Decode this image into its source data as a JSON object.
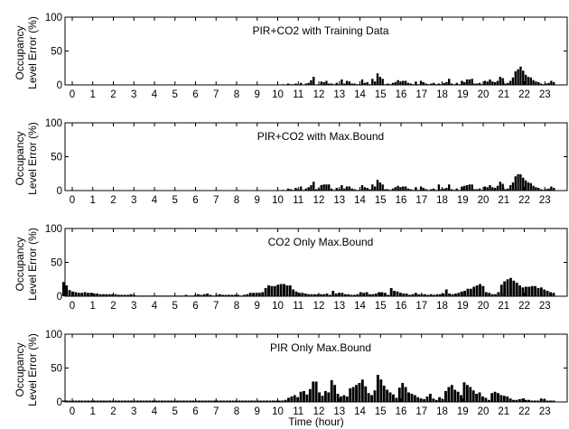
{
  "chart_data": [
    {
      "type": "bar",
      "title": "PIR+CO2 with Training Data",
      "ylabel_line1": "Occupancy",
      "ylabel_line2": "Level Error (%)",
      "xlabel": "",
      "ylim": [
        0,
        100
      ],
      "yticks": [
        "0",
        "50",
        "100"
      ],
      "x_tick_labels": [
        "0",
        "1",
        "2",
        "3",
        "4",
        "5",
        "6",
        "7",
        "8",
        "9",
        "10",
        "11",
        "12",
        "13",
        "14",
        "15",
        "16",
        "17",
        "18",
        "19",
        "20",
        "21",
        "22",
        "23"
      ],
      "values": [
        0,
        0,
        0,
        0,
        0,
        0,
        0,
        0,
        0,
        0,
        0,
        0,
        0,
        0,
        0,
        0,
        0,
        0,
        0,
        0,
        0,
        0,
        0,
        0,
        0,
        0,
        0,
        0,
        0,
        0,
        0,
        0,
        0,
        0,
        0,
        0,
        0,
        0,
        0,
        0,
        0,
        0,
        0,
        0,
        0,
        0,
        0,
        0,
        0,
        0,
        0,
        0,
        0,
        0,
        0,
        0,
        0,
        0,
        0,
        0,
        0,
        0,
        0,
        0,
        0,
        0,
        0,
        0,
        0,
        0,
        0,
        0,
        0,
        0,
        0,
        0,
        0,
        0,
        0,
        0,
        0,
        0,
        0,
        0,
        0,
        0,
        1,
        0,
        2,
        1,
        1,
        2,
        1,
        3,
        0,
        2,
        3,
        7,
        12,
        0,
        1,
        5,
        4,
        6,
        2,
        2,
        1,
        3,
        1,
        8,
        2,
        6,
        5,
        2,
        2,
        1,
        1,
        8,
        3,
        4,
        1,
        9,
        5,
        17,
        12,
        9,
        1,
        2,
        1,
        3,
        4,
        7,
        5,
        6,
        6,
        3,
        2,
        1,
        5,
        1,
        6,
        4,
        2,
        1,
        2,
        3,
        1,
        2,
        1,
        3,
        4,
        9,
        2,
        1,
        3,
        1,
        6,
        4,
        8,
        8,
        9,
        2,
        2,
        3,
        1,
        6,
        5,
        8,
        5,
        4,
        6,
        12,
        10,
        2,
        3,
        6,
        11,
        20,
        23,
        27,
        21,
        15,
        12,
        11,
        7,
        5,
        4,
        2,
        1,
        2,
        3,
        6,
        4
      ]
    },
    {
      "type": "bar",
      "title": "PIR+CO2 with Max.Bound",
      "ylabel_line1": "Occupancy",
      "ylabel_line2": "Level Error (%)",
      "xlabel": "",
      "ylim": [
        0,
        100
      ],
      "yticks": [
        "0",
        "50",
        "100"
      ],
      "x_tick_labels": [
        "0",
        "1",
        "2",
        "3",
        "4",
        "5",
        "6",
        "7",
        "8",
        "9",
        "10",
        "11",
        "12",
        "13",
        "14",
        "15",
        "16",
        "17",
        "18",
        "19",
        "20",
        "21",
        "22",
        "23"
      ],
      "values": [
        0,
        0,
        0,
        0,
        0,
        0,
        0,
        0,
        0,
        0,
        0,
        0,
        0,
        0,
        0,
        0,
        0,
        0,
        0,
        0,
        0,
        0,
        0,
        0,
        0,
        0,
        0,
        0,
        0,
        0,
        0,
        0,
        0,
        0,
        0,
        0,
        0,
        0,
        0,
        0,
        0,
        0,
        0,
        0,
        0,
        0,
        0,
        0,
        0,
        0,
        0,
        0,
        0,
        0,
        0,
        0,
        0,
        0,
        0,
        0,
        0,
        0,
        0,
        0,
        0,
        0,
        0,
        0,
        0,
        0,
        0,
        0,
        0,
        0,
        0,
        0,
        0,
        0,
        0,
        0,
        0,
        0,
        0,
        0,
        0,
        0,
        1,
        0,
        3,
        2,
        1,
        4,
        2,
        6,
        1,
        3,
        5,
        8,
        13,
        2,
        3,
        8,
        9,
        9,
        9,
        3,
        1,
        4,
        2,
        8,
        3,
        6,
        6,
        3,
        2,
        1,
        1,
        8,
        5,
        4,
        2,
        9,
        6,
        16,
        12,
        9,
        2,
        2,
        1,
        3,
        5,
        7,
        5,
        6,
        6,
        3,
        2,
        1,
        5,
        1,
        6,
        4,
        2,
        1,
        2,
        3,
        1,
        9,
        2,
        3,
        4,
        9,
        2,
        1,
        3,
        1,
        6,
        7,
        8,
        9,
        9,
        2,
        2,
        3,
        1,
        6,
        5,
        8,
        5,
        4,
        7,
        13,
        10,
        2,
        3,
        8,
        12,
        21,
        24,
        24,
        19,
        15,
        12,
        11,
        7,
        5,
        4,
        2,
        1,
        2,
        3,
        6,
        4
      ]
    },
    {
      "type": "bar",
      "title": "CO2 Only Max.Bound",
      "ylabel_line1": "Occupancy",
      "ylabel_line2": "Level Error (%)",
      "xlabel": "",
      "ylim": [
        0,
        100
      ],
      "yticks": [
        "0",
        "50",
        "100"
      ],
      "x_tick_labels": [
        "0",
        "1",
        "2",
        "3",
        "4",
        "5",
        "6",
        "7",
        "8",
        "9",
        "10",
        "11",
        "12",
        "13",
        "14",
        "15",
        "16",
        "17",
        "18",
        "19",
        "20",
        "21",
        "22",
        "23"
      ],
      "values": [
        21,
        16,
        9,
        7,
        6,
        5,
        5,
        6,
        5,
        5,
        4,
        4,
        3,
        3,
        3,
        3,
        3,
        3,
        2,
        2,
        2,
        2,
        3,
        2,
        1,
        1,
        1,
        1,
        1,
        1,
        1,
        1,
        1,
        1,
        1,
        1,
        1,
        1,
        1,
        1,
        2,
        1,
        1,
        2,
        3,
        2,
        3,
        4,
        2,
        1,
        2,
        3,
        2,
        2,
        2,
        2,
        2,
        2,
        1,
        2,
        3,
        5,
        5,
        5,
        5,
        6,
        12,
        16,
        15,
        15,
        17,
        18,
        18,
        16,
        16,
        10,
        7,
        5,
        5,
        4,
        3,
        3,
        3,
        3,
        3,
        3,
        4,
        2,
        8,
        4,
        5,
        5,
        3,
        3,
        2,
        2,
        3,
        6,
        5,
        6,
        3,
        3,
        4,
        6,
        6,
        5,
        2,
        12,
        8,
        7,
        5,
        4,
        4,
        2,
        3,
        5,
        3,
        3,
        3,
        2,
        3,
        2,
        3,
        3,
        4,
        10,
        4,
        3,
        4,
        5,
        7,
        8,
        11,
        11,
        14,
        16,
        18,
        15,
        6,
        5,
        3,
        3,
        6,
        17,
        22,
        25,
        27,
        23,
        20,
        16,
        13,
        14,
        14,
        15,
        15,
        12,
        13,
        10,
        8,
        6,
        5
      ]
    },
    {
      "type": "bar",
      "title": "PIR Only Max.Bound",
      "ylabel_line1": "Occupancy",
      "ylabel_line2": "Level Error (%)",
      "xlabel": "Time (hour)",
      "ylim": [
        0,
        100
      ],
      "yticks": [
        "0",
        "50",
        "100"
      ],
      "x_tick_labels": [
        "0",
        "1",
        "2",
        "3",
        "4",
        "5",
        "6",
        "7",
        "8",
        "9",
        "10",
        "11",
        "12",
        "13",
        "14",
        "15",
        "16",
        "17",
        "18",
        "19",
        "20",
        "21",
        "22",
        "23"
      ],
      "values": [
        2,
        2,
        2,
        2,
        2,
        2,
        2,
        2,
        2,
        2,
        2,
        2,
        2,
        2,
        2,
        2,
        2,
        2,
        2,
        2,
        2,
        2,
        2,
        2,
        2,
        2,
        2,
        2,
        2,
        2,
        2,
        2,
        2,
        2,
        2,
        2,
        2,
        2,
        2,
        2,
        2,
        2,
        2,
        2,
        2,
        2,
        2,
        2,
        2,
        2,
        2,
        2,
        2,
        2,
        2,
        2,
        2,
        2,
        2,
        2,
        2,
        2,
        2,
        2,
        2,
        2,
        2,
        2,
        2,
        2,
        2,
        2,
        3,
        6,
        8,
        10,
        7,
        15,
        16,
        11,
        19,
        30,
        30,
        14,
        9,
        16,
        14,
        32,
        25,
        12,
        8,
        10,
        8,
        20,
        22,
        25,
        28,
        33,
        23,
        13,
        10,
        17,
        40,
        33,
        24,
        18,
        14,
        11,
        6,
        21,
        28,
        22,
        14,
        12,
        10,
        7,
        5,
        4,
        8,
        12,
        5,
        3,
        7,
        4,
        16,
        22,
        25,
        18,
        15,
        10,
        29,
        25,
        22,
        17,
        12,
        14,
        8,
        6,
        3,
        13,
        15,
        13,
        10,
        9,
        8,
        5,
        3,
        3,
        4,
        5,
        3,
        3,
        2,
        2,
        2,
        5,
        4,
        2,
        2,
        2
      ]
    }
  ]
}
